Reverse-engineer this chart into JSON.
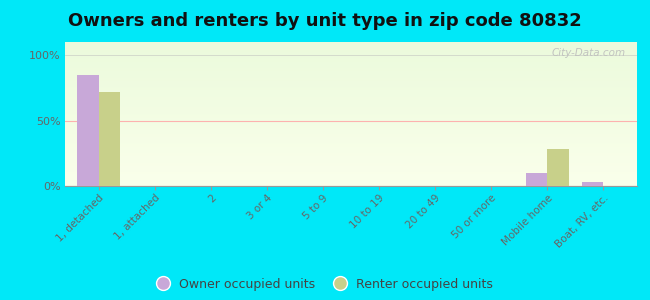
{
  "title": "Owners and renters by unit type in zip code 80832",
  "categories": [
    "1, detached",
    "1, attached",
    "2",
    "3 or 4",
    "5 to 9",
    "10 to 19",
    "20 to 49",
    "50 or more",
    "Mobile home",
    "Boat, RV, etc."
  ],
  "owner_values": [
    85,
    0,
    0,
    0,
    0,
    0,
    0,
    0,
    10,
    3
  ],
  "renter_values": [
    72,
    0,
    0,
    0,
    0,
    0,
    0,
    0,
    28,
    0
  ],
  "owner_color": "#c8a8d8",
  "renter_color": "#c8d08a",
  "background_color": "#00e8f8",
  "yticks": [
    0,
    50,
    100
  ],
  "ylim": [
    0,
    110
  ],
  "ylabel_labels": [
    "0%",
    "50%",
    "100%"
  ],
  "legend_owner": "Owner occupied units",
  "legend_renter": "Renter occupied units",
  "title_fontsize": 13,
  "watermark": "City-Data.com"
}
